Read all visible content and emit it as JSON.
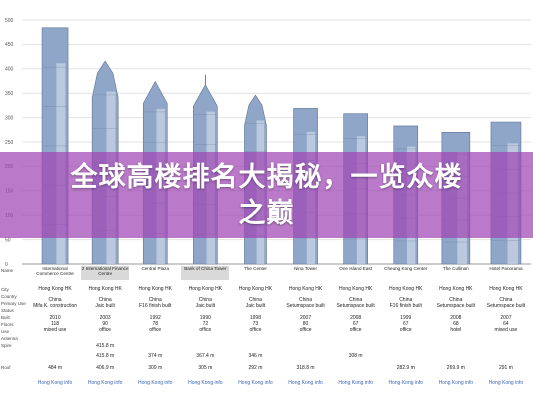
{
  "banner": {
    "line1": "全球高楼排名大揭秘，一览众楼",
    "line2": "之巅",
    "color": "#a046b4"
  },
  "chart_data": {
    "type": "bar",
    "ylabel": "",
    "ylim": [
      0,
      500
    ],
    "yticks": [
      "500",
      "450",
      "400",
      "350",
      "300",
      "250",
      "200",
      "150",
      "100",
      "50",
      "0"
    ],
    "row_labels": [
      "Name",
      "City",
      "Country",
      "Primary Use",
      "Status",
      "Built",
      "Floors",
      "Use",
      "Antenna",
      "Spire",
      "Roof"
    ],
    "categories": [
      "International Commerce Centre",
      "2 International Finance Centre",
      "Central Plaza",
      "Bank of China Tower",
      "The Center",
      "Nina Tower",
      "One Island East",
      "Cheung Kong Center",
      "The Cullinan",
      "Hotel Panorama"
    ],
    "series": [
      {
        "values": [
          484,
          415.8,
          374,
          367.4,
          346,
          318.8,
          308,
          282.9,
          269.9,
          291
        ]
      }
    ],
    "table": [
      {
        "city": "Hong Kong HK",
        "country": "China",
        "status": "Mifa K. construction",
        "built": "2010",
        "floors": "118",
        "use": "mixed use",
        "antenna": "",
        "spire": "",
        "roof": "484 m",
        "selected": false
      },
      {
        "city": "Hong Kong HK",
        "country": "China",
        "status": "Jaic built",
        "built": "2003",
        "floors": "90",
        "use": "office",
        "antenna": "415.8 m",
        "spire": "415.8 m",
        "roof": "406.9 m",
        "selected": true
      },
      {
        "city": "Hong Kong HK",
        "country": "China",
        "status": "F16 finish built",
        "built": "1992",
        "floors": "78",
        "use": "office",
        "antenna": "",
        "spire": "374 m",
        "roof": "309 m",
        "selected": false
      },
      {
        "city": "Hong Kong HK",
        "country": "China",
        "status": "Jaic built",
        "built": "1990",
        "floors": "72",
        "use": "office",
        "antenna": "",
        "spire": "367.4 m",
        "roof": "305 m",
        "selected": true
      },
      {
        "city": "Hong Kong HK",
        "country": "China",
        "status": "Jaic built",
        "built": "1998",
        "floors": "73",
        "use": "office",
        "antenna": "",
        "spire": "346 m",
        "roof": "292 m",
        "selected": false
      },
      {
        "city": "Hong Kong HK",
        "country": "China",
        "status": "Setumspace built",
        "built": "2007",
        "floors": "80",
        "use": "office",
        "antenna": "",
        "spire": "",
        "roof": "318.8 m",
        "selected": false
      },
      {
        "city": "Hong Kong HK",
        "country": "China",
        "status": "Setumspace built",
        "built": "2008",
        "floors": "67",
        "use": "office",
        "antenna": "",
        "spire": "308 m",
        "roof": "",
        "selected": false
      },
      {
        "city": "Hong Kong HK",
        "country": "China",
        "status": "F16 finish built",
        "built": "1999",
        "floors": "67",
        "use": "office",
        "antenna": "",
        "spire": "",
        "roof": "282.9 m",
        "selected": false
      },
      {
        "city": "Hong Kong HK",
        "country": "China",
        "status": "Setumspace built",
        "built": "2008",
        "floors": "68",
        "use": "hotel",
        "antenna": "",
        "spire": "",
        "roof": "269.9 m",
        "selected": false
      },
      {
        "city": "Hong Kong HK",
        "country": "China",
        "status": "Setumspace built",
        "built": "2007",
        "floors": "64",
        "use": "mixed use",
        "antenna": "",
        "spire": "",
        "roof": "291 m",
        "selected": false
      }
    ],
    "link_text": "Hong Kong info",
    "grid": true,
    "colors": {
      "glass": "#8fa6c8",
      "glass_dark": "#5f7398",
      "light": "#dfe5ef",
      "grid": "#e3e3e3"
    }
  }
}
